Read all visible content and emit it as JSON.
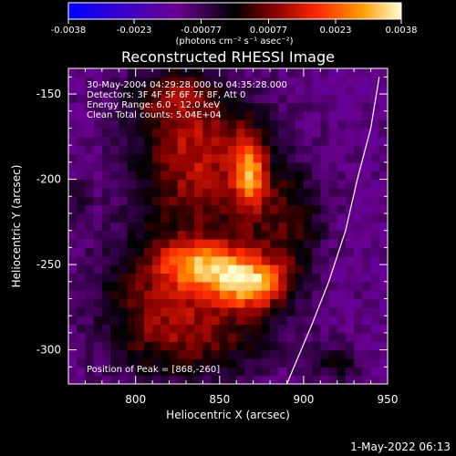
{
  "chart_data": {
    "type": "heatmap",
    "title": "Reconstructed RHESSI Image",
    "xlabel": "Heliocentric X (arcsec)",
    "ylabel": "Heliocentric Y (arcsec)",
    "xlim": [
      760,
      950
    ],
    "ylim": [
      -320,
      -135
    ],
    "x_ticks": [
      800,
      850,
      900,
      950
    ],
    "y_ticks": [
      -150,
      -200,
      -250,
      -300
    ],
    "colorbar": {
      "range": [
        -0.0038,
        0.0038
      ],
      "ticks": [
        "-0.0038",
        "-0.0023",
        "-0.00077",
        "0.00077",
        "0.0023",
        "0.0038"
      ],
      "tick_values": [
        -0.0038,
        -0.0023,
        -0.00077,
        0.00077,
        0.0023,
        0.0038
      ],
      "unit_label": "(photons cm⁻² s⁻¹ asec⁻²)"
    },
    "annotations": [
      "30-May-2004 04:29:28.000 to 04:35:28.000",
      "Detectors: 3F 4F 5F 6F 7F 8F, Att 0",
      "Energy Range: 6.0 - 12.0 keV",
      "Clean     Total counts: 5.04E+04"
    ],
    "peak_label": "Position of Peak = [868,-260]",
    "peak": {
      "x": 868,
      "y": -260
    },
    "sources": [
      {
        "x": 868,
        "y": -260,
        "sx": 16,
        "sy": 11,
        "amp": 0.0038
      },
      {
        "x": 868,
        "y": -195,
        "sx": 7,
        "sy": 16,
        "amp": 0.0029
      },
      {
        "x": 838,
        "y": -250,
        "sx": 17,
        "sy": 10,
        "amp": 0.0026
      },
      {
        "x": 832,
        "y": -180,
        "sx": 24,
        "sy": 26,
        "amp": 0.0018
      },
      {
        "x": 812,
        "y": -272,
        "sx": 26,
        "sy": 30,
        "amp": 0.0016
      },
      {
        "x": 845,
        "y": -292,
        "sx": 30,
        "sy": 16,
        "amp": 0.0012
      },
      {
        "x": 892,
        "y": -225,
        "sx": 14,
        "sy": 22,
        "amp": 0.0013
      },
      {
        "x": 850,
        "y": -215,
        "sx": 30,
        "sy": 40,
        "amp": 0.0011
      },
      {
        "x": 920,
        "y": -308,
        "sx": 10,
        "sy": 8,
        "amp": 0.0011
      },
      {
        "x": 820,
        "y": -150,
        "sx": 18,
        "sy": 10,
        "amp": 0.0013
      },
      {
        "x": 765,
        "y": -215,
        "sx": 6,
        "sy": 10,
        "amp": 0.0008
      }
    ],
    "background_level": -0.0012,
    "limb_curve": [
      [
        890,
        -320
      ],
      [
        905,
        -285
      ],
      [
        915,
        -260
      ],
      [
        925,
        -230
      ],
      [
        932,
        -200
      ],
      [
        940,
        -170
      ],
      [
        945,
        -140
      ]
    ]
  },
  "footer": {
    "date_label": "1-May-2022 06:13"
  }
}
